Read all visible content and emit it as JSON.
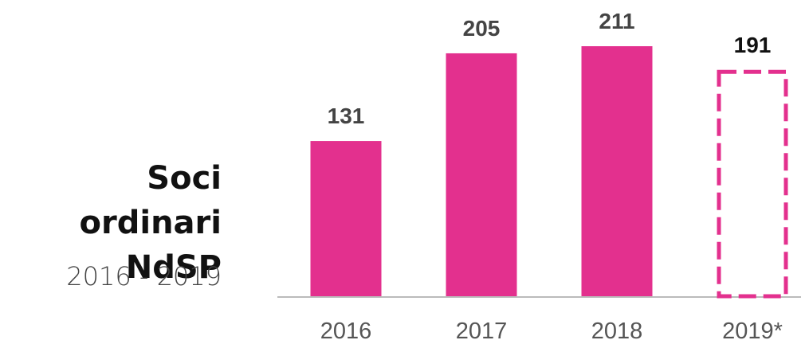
{
  "chart_data": {
    "type": "bar",
    "title": "Soci ordinari NdSP",
    "subtitle": "2016 - 2019",
    "categories": [
      "2016",
      "2017",
      "2018",
      "2019*"
    ],
    "values": [
      131,
      205,
      211,
      191
    ],
    "color": "#e3308e",
    "styles": [
      "solid",
      "solid",
      "solid",
      "dashed"
    ],
    "ylim": [
      0,
      250
    ]
  }
}
